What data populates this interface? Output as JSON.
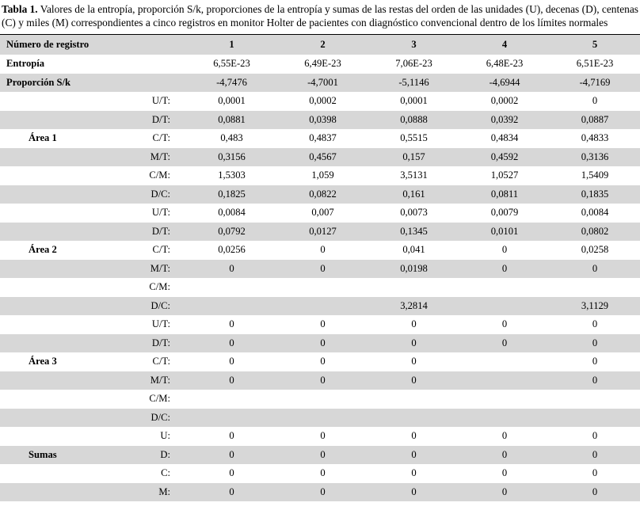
{
  "caption": {
    "label": "Tabla 1.",
    "text": " Valores de la entropía, proporción S/k, proporciones de la entropía y sumas de las restas del orden de las unidades (U), decenas (D), centenas (C) y miles (M) correspondientes a cinco registros en monitor Holter de pacientes con diagnóstico convencional dentro de los límites normales"
  },
  "colors": {
    "stripe": "#d7d7d7",
    "rule": "#000000"
  },
  "table": {
    "header": {
      "label": "Número de registro",
      "columns": [
        "1",
        "2",
        "3",
        "4",
        "5"
      ]
    },
    "rows": [
      {
        "type": "span",
        "label": "Entropía",
        "values": [
          "6,55E-23",
          "6,49E-23",
          "7,06E-23",
          "6,48E-23",
          "6,51E-23"
        ]
      },
      {
        "type": "span",
        "label": "Proporción S/k",
        "values": [
          "-4,7476",
          "-4,7001",
          "-5,1146",
          "-4,6944",
          "-4,7169"
        ]
      },
      {
        "type": "sub",
        "group": "",
        "sublabel": "U/T:",
        "values": [
          "0,0001",
          "0,0002",
          "0,0001",
          "0,0002",
          "0"
        ]
      },
      {
        "type": "sub",
        "group": "",
        "sublabel": "D/T:",
        "values": [
          "0,0881",
          "0,0398",
          "0,0888",
          "0,0392",
          "0,0887"
        ]
      },
      {
        "type": "sub",
        "group": "Área 1",
        "sublabel": "C/T:",
        "values": [
          "0,483",
          "0,4837",
          "0,5515",
          "0,4834",
          "0,4833"
        ]
      },
      {
        "type": "sub",
        "group": "",
        "sublabel": "M/T:",
        "values": [
          "0,3156",
          "0,4567",
          "0,157",
          "0,4592",
          "0,3136"
        ]
      },
      {
        "type": "sub",
        "group": "",
        "sublabel": "C/M:",
        "values": [
          "1,5303",
          "1,059",
          "3,5131",
          "1,0527",
          "1,5409"
        ]
      },
      {
        "type": "sub",
        "group": "",
        "sublabel": "D/C:",
        "values": [
          "0,1825",
          "0,0822",
          "0,161",
          "0,0811",
          "0,1835"
        ]
      },
      {
        "type": "sub",
        "group": "",
        "sublabel": "U/T:",
        "values": [
          "0,0084",
          "0,007",
          "0,0073",
          "0,0079",
          "0,0084"
        ]
      },
      {
        "type": "sub",
        "group": "",
        "sublabel": "D/T:",
        "values": [
          "0,0792",
          "0,0127",
          "0,1345",
          "0,0101",
          "0,0802"
        ]
      },
      {
        "type": "sub",
        "group": "Área 2",
        "sublabel": "C/T:",
        "values": [
          "0,0256",
          "0",
          "0,041",
          "0",
          "0,0258"
        ]
      },
      {
        "type": "sub",
        "group": "",
        "sublabel": "M/T:",
        "values": [
          "0",
          "0",
          "0,0198",
          "0",
          "0"
        ]
      },
      {
        "type": "sub",
        "group": "",
        "sublabel": "C/M:",
        "values": [
          "",
          "",
          "",
          "",
          ""
        ]
      },
      {
        "type": "sub",
        "group": "",
        "sublabel": "D/C:",
        "values": [
          "",
          "",
          "3,2814",
          "",
          "3,1129"
        ]
      },
      {
        "type": "sub",
        "group": "",
        "sublabel": "U/T:",
        "values": [
          "0",
          "0",
          "0",
          "0",
          "0"
        ]
      },
      {
        "type": "sub",
        "group": "",
        "sublabel": "D/T:",
        "values": [
          "0",
          "0",
          "0",
          "0",
          "0"
        ]
      },
      {
        "type": "sub",
        "group": "Área 3",
        "sublabel": "C/T:",
        "values": [
          "0",
          "0",
          "0",
          "",
          "0"
        ]
      },
      {
        "type": "sub",
        "group": "",
        "sublabel": "M/T:",
        "values": [
          "0",
          "0",
          "0",
          "",
          "0"
        ]
      },
      {
        "type": "sub",
        "group": "",
        "sublabel": "C/M:",
        "values": [
          "",
          "",
          "",
          "",
          ""
        ]
      },
      {
        "type": "sub",
        "group": "",
        "sublabel": "D/C:",
        "values": [
          "",
          "",
          "",
          "",
          ""
        ]
      },
      {
        "type": "sub",
        "group": "",
        "sublabel": "U:",
        "values": [
          "0",
          "0",
          "0",
          "0",
          "0"
        ]
      },
      {
        "type": "sub",
        "group": "Sumas",
        "sublabel": "D:",
        "values": [
          "0",
          "0",
          "0",
          "0",
          "0"
        ]
      },
      {
        "type": "sub",
        "group": "",
        "sublabel": "C:",
        "values": [
          "0",
          "0",
          "0",
          "0",
          "0"
        ]
      },
      {
        "type": "sub",
        "group": "",
        "sublabel": "M:",
        "values": [
          "0",
          "0",
          "0",
          "0",
          "0"
        ]
      }
    ]
  }
}
